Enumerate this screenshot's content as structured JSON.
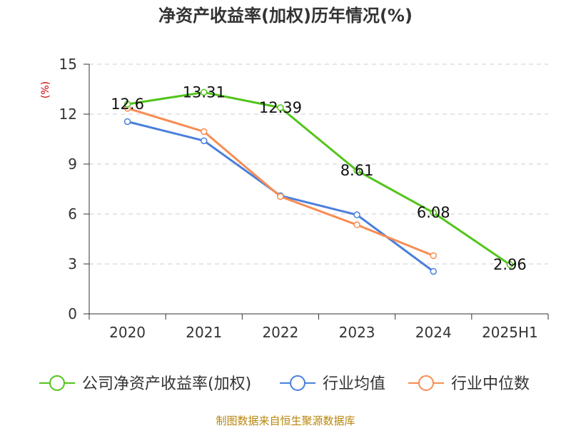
{
  "chart_data": {
    "type": "line",
    "title": "净资产收益率(加权)历年情况(%)",
    "ylabel": "(%)",
    "ylim": [
      0,
      15
    ],
    "yticks": [
      0,
      3,
      6,
      9,
      12,
      15
    ],
    "grid": true,
    "legend_position": "bottom",
    "categories": [
      "2020",
      "2021",
      "2022",
      "2023",
      "2024",
      "2025H1"
    ],
    "series": [
      {
        "name": "公司净资产收益率(加权)",
        "color": "#52c41a",
        "values": [
          12.6,
          13.31,
          12.39,
          8.61,
          6.08,
          2.96
        ],
        "labels": [
          "12.6",
          "13.31",
          "12.39",
          "8.61",
          "6.08",
          "2.96"
        ]
      },
      {
        "name": "行业均值",
        "color": "#4a7fdc",
        "values": [
          11.55,
          10.4,
          7.1,
          5.95,
          2.55,
          null
        ]
      },
      {
        "name": "行业中位数",
        "color": "#f88c52",
        "values": [
          12.35,
          10.95,
          7.05,
          5.35,
          3.5,
          null
        ]
      }
    ]
  },
  "footer": "制图数据来自恒生聚源数据库"
}
